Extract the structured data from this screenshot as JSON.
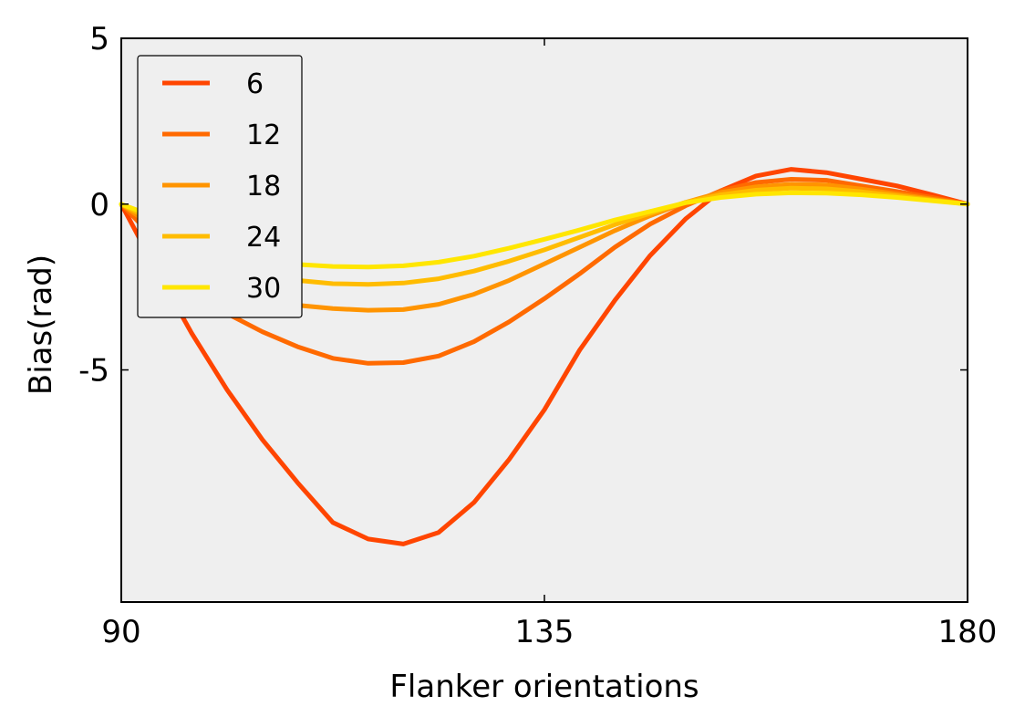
{
  "chart_data": {
    "type": "line",
    "xlabel": "Flanker orientations",
    "ylabel": "Bias(rad)",
    "xlim": [
      90,
      180
    ],
    "ylim": [
      -12,
      5
    ],
    "xticks": [
      90,
      135,
      180
    ],
    "xtick_labels": [
      "90",
      "135",
      "180"
    ],
    "yticks": [
      5,
      0,
      -5
    ],
    "ytick_labels": [
      "5",
      "0",
      "-5"
    ],
    "grid": false,
    "plot_background": "#efefef",
    "legend": {
      "placement": "upper-left"
    },
    "x": [
      90,
      93.75,
      97.5,
      101.25,
      105,
      108.75,
      112.5,
      116.25,
      120,
      123.75,
      127.5,
      131.25,
      135,
      138.75,
      142.5,
      146.25,
      150,
      153.75,
      157.5,
      161.25,
      165,
      168.75,
      172.5,
      176.25,
      180
    ],
    "series": [
      {
        "name": "6",
        "color": "#ff4500",
        "values": [
          0,
          -2.0,
          -3.9,
          -5.6,
          -7.1,
          -8.4,
          -9.6,
          -10.1,
          -10.25,
          -9.9,
          -9.0,
          -7.7,
          -6.2,
          -4.4,
          -2.9,
          -1.55,
          -0.45,
          0.4,
          0.85,
          1.05,
          0.95,
          0.75,
          0.55,
          0.28,
          0
        ]
      },
      {
        "name": "12",
        "color": "#ff6a00",
        "values": [
          0,
          -1.1,
          -2.3,
          -3.3,
          -3.85,
          -4.3,
          -4.65,
          -4.8,
          -4.78,
          -4.58,
          -4.15,
          -3.55,
          -2.85,
          -2.1,
          -1.3,
          -0.6,
          -0.05,
          0.4,
          0.65,
          0.75,
          0.72,
          0.55,
          0.38,
          0.2,
          0
        ]
      },
      {
        "name": "18",
        "color": "#ff9400",
        "values": [
          0,
          -0.75,
          -1.6,
          -2.3,
          -2.75,
          -3.05,
          -3.15,
          -3.2,
          -3.18,
          -3.02,
          -2.72,
          -2.3,
          -1.8,
          -1.3,
          -0.8,
          -0.35,
          0.05,
          0.35,
          0.52,
          0.6,
          0.58,
          0.45,
          0.3,
          0.15,
          0
        ]
      },
      {
        "name": "24",
        "color": "#ffbc00",
        "values": [
          0,
          -0.55,
          -1.2,
          -1.75,
          -2.1,
          -2.3,
          -2.4,
          -2.42,
          -2.38,
          -2.25,
          -2.02,
          -1.72,
          -1.38,
          -1.0,
          -0.62,
          -0.28,
          0.05,
          0.28,
          0.42,
          0.48,
          0.46,
          0.37,
          0.25,
          0.12,
          0
        ]
      },
      {
        "name": "30",
        "color": "#ffe600",
        "values": [
          0,
          -0.4,
          -0.95,
          -1.4,
          -1.68,
          -1.82,
          -1.88,
          -1.9,
          -1.86,
          -1.75,
          -1.57,
          -1.33,
          -1.06,
          -0.78,
          -0.48,
          -0.22,
          0.04,
          0.2,
          0.3,
          0.34,
          0.33,
          0.28,
          0.2,
          0.1,
          0
        ]
      }
    ]
  }
}
